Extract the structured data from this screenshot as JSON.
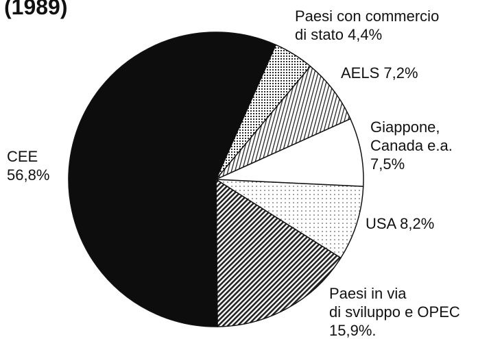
{
  "chart_data": {
    "type": "pie",
    "title": "(1989)",
    "categories": [
      "USA",
      "Paesi in via\ndi sviluppo e OPEC",
      "CEE",
      "Paesi con commercio\ndi stato",
      "AELS",
      "Giappone,\nCanada e.a."
    ],
    "values": [
      8.2,
      15.9,
      56.8,
      4.4,
      7.2,
      7.5
    ],
    "value_labels": [
      "8,2%",
      "15,9%.",
      "56,8%",
      "4,4%",
      "7,2%",
      "7,5%"
    ],
    "colors": [
      "#e6e6e6",
      "#555555",
      "#0d0d0d",
      "#888888",
      "#aaaaaa",
      "#ffffff"
    ]
  }
}
